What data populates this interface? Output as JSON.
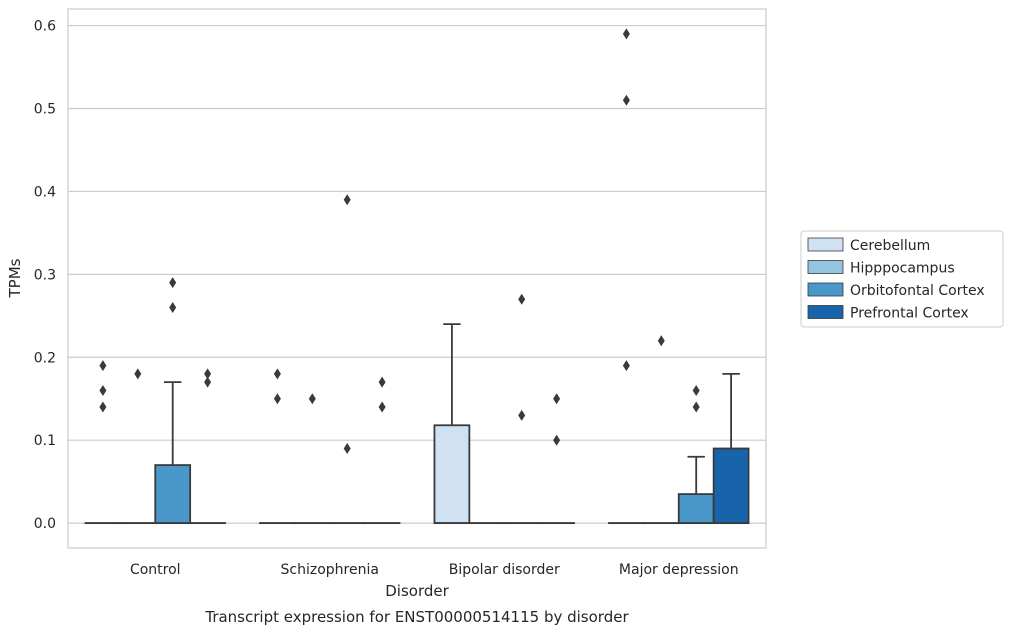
{
  "chart_data": {
    "type": "box",
    "title": "",
    "caption": "Transcript expression for ENST00000514115 by disorder",
    "xlabel": "Disorder",
    "ylabel": "TPMs",
    "ylim": [
      -0.03,
      0.62
    ],
    "yticks": [
      0.0,
      0.1,
      0.2,
      0.3,
      0.4,
      0.5,
      0.6
    ],
    "ytick_labels": [
      "0.0",
      "0.1",
      "0.2",
      "0.3",
      "0.4",
      "0.5",
      "0.6"
    ],
    "categories": [
      "Control",
      "Schizophrenia",
      "Bipolar disorder",
      "Major depression"
    ],
    "grid": "horizontal",
    "legend_position": "right",
    "series": [
      {
        "name": "Cerebellum",
        "color": "#d0e1f2",
        "boxes": [
          {
            "q1": 0,
            "median": 0,
            "q3": 0,
            "whisker_low": 0,
            "whisker_high": 0,
            "outliers": [
              0.14,
              0.16,
              0.19
            ]
          },
          {
            "q1": 0,
            "median": 0,
            "q3": 0,
            "whisker_low": 0,
            "whisker_high": 0,
            "outliers": [
              0.15,
              0.18
            ]
          },
          {
            "q1": 0,
            "median": 0,
            "q3": 0.118,
            "whisker_low": 0,
            "whisker_high": 0.24,
            "outliers": []
          },
          {
            "q1": 0,
            "median": 0,
            "q3": 0,
            "whisker_low": 0,
            "whisker_high": 0,
            "outliers": [
              0.19,
              0.51,
              0.59
            ]
          }
        ]
      },
      {
        "name": "Hipppocampus",
        "color": "#94c4df",
        "boxes": [
          {
            "q1": 0,
            "median": 0,
            "q3": 0,
            "whisker_low": 0,
            "whisker_high": 0,
            "outliers": [
              0.18
            ]
          },
          {
            "q1": 0,
            "median": 0,
            "q3": 0,
            "whisker_low": 0,
            "whisker_high": 0,
            "outliers": [
              0.15
            ]
          },
          {
            "q1": 0,
            "median": 0,
            "q3": 0,
            "whisker_low": 0,
            "whisker_high": 0,
            "outliers": []
          },
          {
            "q1": 0,
            "median": 0,
            "q3": 0,
            "whisker_low": 0,
            "whisker_high": 0,
            "outliers": [
              0.22
            ]
          }
        ]
      },
      {
        "name": "Orbitofontal Cortex",
        "color": "#4a98c9",
        "boxes": [
          {
            "q1": 0,
            "median": 0,
            "q3": 0.07,
            "whisker_low": 0,
            "whisker_high": 0.17,
            "outliers": [
              0.26,
              0.29
            ]
          },
          {
            "q1": 0,
            "median": 0,
            "q3": 0,
            "whisker_low": 0,
            "whisker_high": 0,
            "outliers": [
              0.09,
              0.39
            ]
          },
          {
            "q1": 0,
            "median": 0,
            "q3": 0,
            "whisker_low": 0,
            "whisker_high": 0,
            "outliers": [
              0.13,
              0.27
            ]
          },
          {
            "q1": 0,
            "median": 0,
            "q3": 0.035,
            "whisker_low": 0,
            "whisker_high": 0.08,
            "outliers": [
              0.14,
              0.16
            ]
          }
        ]
      },
      {
        "name": "Prefrontal Cortex",
        "color": "#1764ab",
        "boxes": [
          {
            "q1": 0,
            "median": 0,
            "q3": 0,
            "whisker_low": 0,
            "whisker_high": 0,
            "outliers": [
              0.17,
              0.18
            ]
          },
          {
            "q1": 0,
            "median": 0,
            "q3": 0,
            "whisker_low": 0,
            "whisker_high": 0,
            "outliers": [
              0.14,
              0.17
            ]
          },
          {
            "q1": 0,
            "median": 0,
            "q3": 0,
            "whisker_low": 0,
            "whisker_high": 0,
            "outliers": [
              0.1,
              0.15
            ]
          },
          {
            "q1": 0,
            "median": 0,
            "q3": 0.09,
            "whisker_low": 0,
            "whisker_high": 0.18,
            "outliers": []
          }
        ]
      }
    ]
  }
}
